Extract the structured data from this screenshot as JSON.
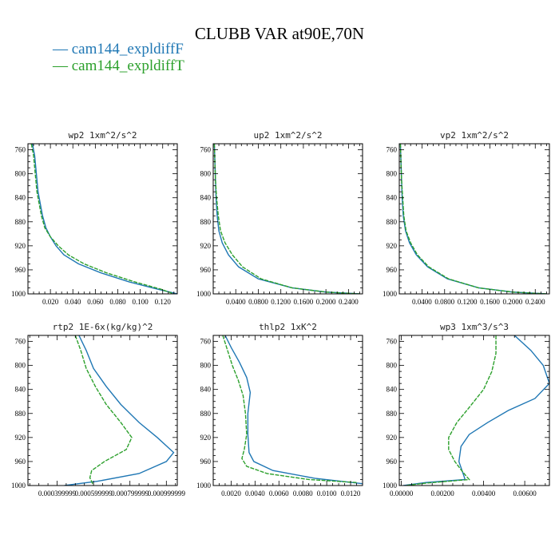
{
  "title": "CLUBB VAR at90E,70N",
  "legend": [
    {
      "label": "cam144_expldiffF",
      "color": "#1f77b4"
    },
    {
      "label": "cam144_expldiffT",
      "color": "#2ca02c"
    }
  ],
  "chart_data": [
    {
      "type": "line",
      "title": "wp2  1xm^2/s^2",
      "ylim": [
        1000,
        750
      ],
      "xlim": [
        0,
        0.133
      ],
      "yticks": [
        760,
        800,
        840,
        880,
        920,
        960,
        1000
      ],
      "xticks": [
        0.02,
        0.04,
        0.06,
        0.08,
        0.1,
        0.12
      ],
      "xtick_labels": [
        "0.020",
        "0.040",
        "0.060",
        "0.080",
        "0.100",
        "0.120"
      ],
      "series": [
        {
          "name": "cam144_expldiffF",
          "color": "#1f77b4",
          "points": [
            [
              0.004,
              750
            ],
            [
              0.006,
              770
            ],
            [
              0.007,
              790
            ],
            [
              0.008,
              810
            ],
            [
              0.009,
              830
            ],
            [
              0.011,
              850
            ],
            [
              0.013,
              870
            ],
            [
              0.016,
              890
            ],
            [
              0.02,
              905
            ],
            [
              0.025,
              920
            ],
            [
              0.032,
              935
            ],
            [
              0.045,
              950
            ],
            [
              0.065,
              965
            ],
            [
              0.09,
              980
            ],
            [
              0.115,
              992
            ],
            [
              0.133,
              1000
            ]
          ]
        },
        {
          "name": "cam144_expldiffT",
          "color": "#2ca02c",
          "dash": true,
          "points": [
            [
              0.003,
              750
            ],
            [
              0.005,
              770
            ],
            [
              0.006,
              790
            ],
            [
              0.007,
              810
            ],
            [
              0.008,
              830
            ],
            [
              0.01,
              850
            ],
            [
              0.012,
              870
            ],
            [
              0.015,
              890
            ],
            [
              0.02,
              905
            ],
            [
              0.027,
              920
            ],
            [
              0.036,
              935
            ],
            [
              0.05,
              950
            ],
            [
              0.07,
              965
            ],
            [
              0.095,
              980
            ],
            [
              0.118,
              992
            ],
            [
              0.13,
              1000
            ]
          ]
        }
      ]
    },
    {
      "type": "line",
      "title": "up2  1xm^2/s^2",
      "ylim": [
        1000,
        750
      ],
      "xlim": [
        0,
        0.265
      ],
      "yticks": [
        760,
        800,
        840,
        880,
        920,
        960,
        1000
      ],
      "xticks": [
        0.04,
        0.08,
        0.12,
        0.16,
        0.2,
        0.24
      ],
      "xtick_labels": [
        "0.0400",
        "0.0800",
        "0.1200",
        "0.1600",
        "0.2000",
        "0.2400"
      ],
      "series": [
        {
          "name": "cam144_expldiffF",
          "color": "#1f77b4",
          "points": [
            [
              0.002,
              750
            ],
            [
              0.003,
              780
            ],
            [
              0.004,
              810
            ],
            [
              0.005,
              840
            ],
            [
              0.007,
              870
            ],
            [
              0.01,
              895
            ],
            [
              0.016,
              915
            ],
            [
              0.027,
              935
            ],
            [
              0.045,
              955
            ],
            [
              0.08,
              975
            ],
            [
              0.14,
              990
            ],
            [
              0.2,
              997
            ],
            [
              0.26,
              1000
            ]
          ]
        },
        {
          "name": "cam144_expldiffT",
          "color": "#2ca02c",
          "dash": true,
          "points": [
            [
              0.002,
              750
            ],
            [
              0.003,
              780
            ],
            [
              0.004,
              810
            ],
            [
              0.006,
              840
            ],
            [
              0.009,
              870
            ],
            [
              0.013,
              895
            ],
            [
              0.021,
              915
            ],
            [
              0.034,
              935
            ],
            [
              0.052,
              955
            ],
            [
              0.085,
              975
            ],
            [
              0.14,
              990
            ],
            [
              0.2,
              997
            ],
            [
              0.26,
              1000
            ]
          ]
        }
      ]
    },
    {
      "type": "line",
      "title": "vp2  1xm^2/s^2",
      "ylim": [
        1000,
        750
      ],
      "xlim": [
        0,
        0.265
      ],
      "yticks": [
        760,
        800,
        840,
        880,
        920,
        960,
        1000
      ],
      "xticks": [
        0.04,
        0.08,
        0.12,
        0.16,
        0.2,
        0.24
      ],
      "xtick_labels": [
        "0.0400",
        "0.0800",
        "0.1200",
        "0.1600",
        "0.2000",
        "0.2400"
      ],
      "series": [
        {
          "name": "cam144_expldiffF",
          "color": "#1f77b4",
          "points": [
            [
              0.002,
              750
            ],
            [
              0.003,
              780
            ],
            [
              0.004,
              810
            ],
            [
              0.005,
              840
            ],
            [
              0.007,
              870
            ],
            [
              0.011,
              895
            ],
            [
              0.018,
              915
            ],
            [
              0.03,
              935
            ],
            [
              0.05,
              955
            ],
            [
              0.085,
              975
            ],
            [
              0.14,
              990
            ],
            [
              0.2,
              997
            ],
            [
              0.26,
              1000
            ]
          ]
        },
        {
          "name": "cam144_expldiffT",
          "color": "#2ca02c",
          "dash": true,
          "points": [
            [
              0.002,
              750
            ],
            [
              0.003,
              780
            ],
            [
              0.004,
              810
            ],
            [
              0.006,
              840
            ],
            [
              0.008,
              870
            ],
            [
              0.012,
              895
            ],
            [
              0.02,
              915
            ],
            [
              0.032,
              935
            ],
            [
              0.052,
              955
            ],
            [
              0.087,
              975
            ],
            [
              0.14,
              990
            ],
            [
              0.2,
              997
            ],
            [
              0.26,
              1000
            ]
          ]
        }
      ]
    },
    {
      "type": "line",
      "title": "rtp2  1E-6x(kg/kg)^2",
      "ylim": [
        1000,
        750
      ],
      "xlim": [
        0.00024,
        0.00106
      ],
      "yticks": [
        760,
        800,
        840,
        880,
        920,
        960,
        1000
      ],
      "xticks": [
        0.0004,
        0.0006,
        0.0008,
        0.001
      ],
      "xtick_labels": [
        "0.000399999",
        "0.000599999",
        "0.000799999",
        "0.000999999"
      ],
      "series": [
        {
          "name": "cam144_expldiffF",
          "color": "#1f77b4",
          "points": [
            [
              0.00052,
              750
            ],
            [
              0.00056,
              775
            ],
            [
              0.0006,
              805
            ],
            [
              0.00067,
              835
            ],
            [
              0.00075,
              865
            ],
            [
              0.00085,
              895
            ],
            [
              0.00095,
              920
            ],
            [
              0.00104,
              945
            ],
            [
              0.001,
              960
            ],
            [
              0.00085,
              980
            ],
            [
              0.00062,
              993
            ],
            [
              0.00044,
              1000
            ]
          ]
        },
        {
          "name": "cam144_expldiffT",
          "color": "#2ca02c",
          "dash": true,
          "points": [
            [
              0.0005,
              750
            ],
            [
              0.00053,
              775
            ],
            [
              0.00056,
              805
            ],
            [
              0.00061,
              835
            ],
            [
              0.00067,
              865
            ],
            [
              0.00075,
              895
            ],
            [
              0.00081,
              920
            ],
            [
              0.00078,
              940
            ],
            [
              0.00066,
              960
            ],
            [
              0.00059,
              975
            ],
            [
              0.00058,
              987
            ],
            [
              0.0006,
              1000
            ]
          ]
        }
      ]
    },
    {
      "type": "line",
      "title": "thlp2  1xK^2",
      "ylim": [
        1000,
        750
      ],
      "xlim": [
        0.0005,
        0.013
      ],
      "yticks": [
        760,
        800,
        840,
        880,
        920,
        960,
        1000
      ],
      "xticks": [
        0.002,
        0.004,
        0.006,
        0.008,
        0.01,
        0.012
      ],
      "xtick_labels": [
        "0.0020",
        "0.0040",
        "0.0060",
        "0.0080",
        "0.0100",
        "0.0120"
      ],
      "series": [
        {
          "name": "cam144_expldiffF",
          "color": "#1f77b4",
          "points": [
            [
              0.0015,
              750
            ],
            [
              0.002,
              770
            ],
            [
              0.0027,
              795
            ],
            [
              0.0033,
              820
            ],
            [
              0.0036,
              845
            ],
            [
              0.0034,
              880
            ],
            [
              0.0034,
              915
            ],
            [
              0.0035,
              945
            ],
            [
              0.0039,
              960
            ],
            [
              0.0055,
              975
            ],
            [
              0.009,
              988
            ],
            [
              0.013,
              997
            ]
          ]
        },
        {
          "name": "cam144_expldiffT",
          "color": "#2ca02c",
          "dash": true,
          "points": [
            [
              0.0013,
              750
            ],
            [
              0.0017,
              775
            ],
            [
              0.0021,
              800
            ],
            [
              0.0026,
              825
            ],
            [
              0.003,
              850
            ],
            [
              0.0032,
              880
            ],
            [
              0.0033,
              915
            ],
            [
              0.0031,
              940
            ],
            [
              0.0029,
              955
            ],
            [
              0.0033,
              968
            ],
            [
              0.005,
              980
            ],
            [
              0.0085,
              990
            ],
            [
              0.0125,
              995
            ]
          ]
        }
      ]
    },
    {
      "type": "line",
      "title": "wp3  1xm^3/s^3",
      "ylim": [
        1000,
        750
      ],
      "xlim": [
        -0.0001,
        0.0072
      ],
      "yticks": [
        760,
        800,
        840,
        880,
        920,
        960,
        1000
      ],
      "xticks": [
        0,
        0.002,
        0.004,
        0.006
      ],
      "xtick_labels": [
        "0.00000",
        "0.00200",
        "0.00400",
        "0.00600"
      ],
      "series": [
        {
          "name": "cam144_expldiffF",
          "color": "#1f77b4",
          "points": [
            [
              0.0055,
              750
            ],
            [
              0.0063,
              775
            ],
            [
              0.0069,
              800
            ],
            [
              0.0072,
              830
            ],
            [
              0.0065,
              855
            ],
            [
              0.0052,
              875
            ],
            [
              0.0042,
              895
            ],
            [
              0.0033,
              915
            ],
            [
              0.0029,
              935
            ],
            [
              0.0028,
              960
            ],
            [
              0.003,
              980
            ],
            [
              0.0031,
              990
            ],
            [
              0.0012,
              995
            ],
            [
              0.0001,
              1000
            ]
          ]
        },
        {
          "name": "cam144_expldiffT",
          "color": "#2ca02c",
          "dash": true,
          "points": [
            [
              0.0046,
              750
            ],
            [
              0.0046,
              780
            ],
            [
              0.0044,
              810
            ],
            [
              0.004,
              840
            ],
            [
              0.0033,
              870
            ],
            [
              0.0027,
              895
            ],
            [
              0.0023,
              920
            ],
            [
              0.0023,
              940
            ],
            [
              0.0026,
              960
            ],
            [
              0.003,
              978
            ],
            [
              0.0033,
              990
            ],
            [
              0.0012,
              996
            ],
            [
              0.0002,
              1000
            ]
          ]
        }
      ]
    }
  ]
}
